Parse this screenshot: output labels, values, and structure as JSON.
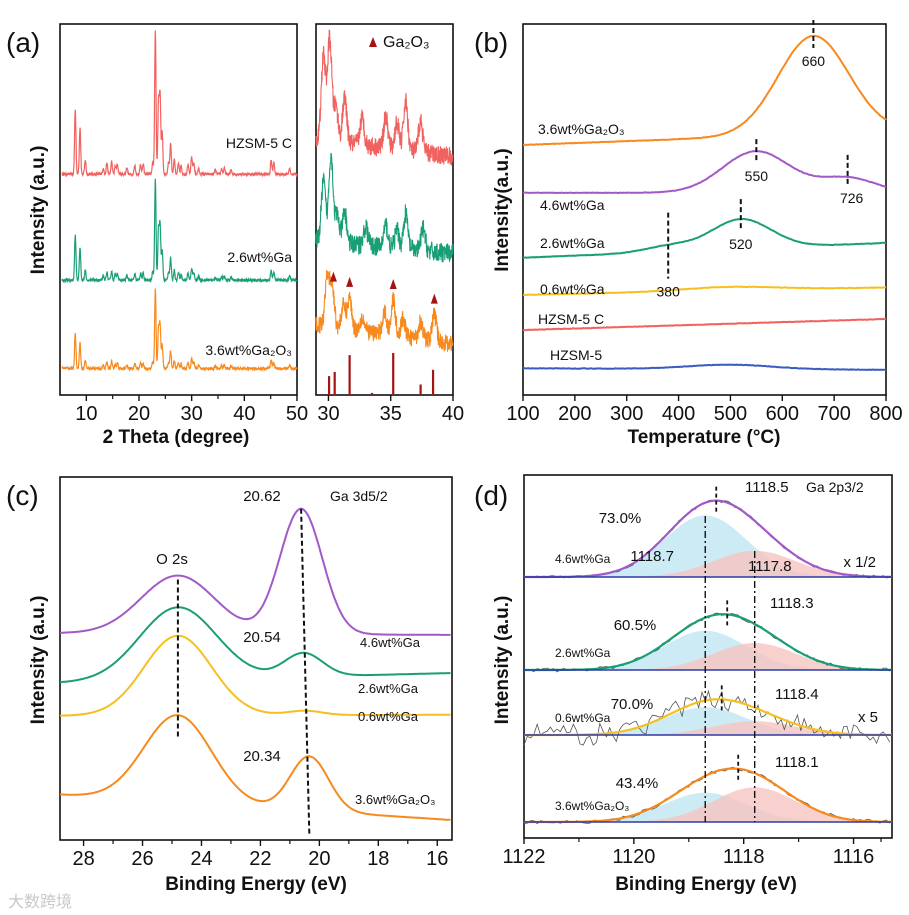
{
  "watermark": "大数跨境",
  "chart_data": [
    {
      "id": "panel_a",
      "type": "line",
      "panel_label": "(a)",
      "xlabel": "2 Theta (degree)",
      "ylabel": "Intensity (a.u.)",
      "xlim": [
        5,
        50
      ],
      "xticks": [
        10,
        20,
        30,
        40,
        50
      ],
      "ylim": [
        0,
        4.2
      ],
      "zsm5_reflections": [
        [
          7.9,
          0.45
        ],
        [
          8.8,
          0.33
        ],
        [
          9.8,
          0.1
        ],
        [
          13.2,
          0.04
        ],
        [
          13.9,
          0.08
        ],
        [
          14.8,
          0.09
        ],
        [
          15.5,
          0.06
        ],
        [
          15.9,
          0.07
        ],
        [
          17.7,
          0.05
        ],
        [
          19.2,
          0.06
        ],
        [
          20.3,
          0.07
        ],
        [
          20.8,
          0.07
        ],
        [
          22.6,
          0.08
        ],
        [
          23.1,
          1.0
        ],
        [
          23.7,
          0.5
        ],
        [
          24.0,
          0.55
        ],
        [
          24.4,
          0.3
        ],
        [
          25.6,
          0.08
        ],
        [
          26.0,
          0.22
        ],
        [
          26.7,
          0.1
        ],
        [
          27.5,
          0.08
        ],
        [
          28.0,
          0.06
        ],
        [
          29.3,
          0.07
        ],
        [
          30.0,
          0.12
        ],
        [
          30.4,
          0.08
        ],
        [
          31.3,
          0.04
        ],
        [
          34.5,
          0.03
        ],
        [
          35.7,
          0.04
        ],
        [
          36.2,
          0.04
        ],
        [
          37.5,
          0.03
        ],
        [
          45.1,
          0.1
        ],
        [
          45.6,
          0.08
        ],
        [
          48.6,
          0.04
        ]
      ],
      "series": [
        {
          "name": "HZSM-5 C",
          "color": "#f0625f",
          "offset": 2.5,
          "scale": 1.63,
          "noise": 0.03
        },
        {
          "name": "2.6wt%Ga",
          "color": "#1a9e77",
          "offset": 1.3,
          "scale": 1.15,
          "noise": 0.03
        },
        {
          "name": "3.6wt%Ga₂O₃",
          "color": "#f7891e",
          "offset": 0.3,
          "scale": 0.9,
          "noise": 0.03
        }
      ],
      "inset": {
        "xlim": [
          29,
          40
        ],
        "xticks": [
          30,
          35,
          40
        ],
        "legend": "Ga₂O₃",
        "series": [
          {
            "name": "HZSM-5 C",
            "color": "#f0625f",
            "level": [
              2.9,
              2.7
            ],
            "noise": 0.22,
            "peaks": [
              [
                29.6,
                0.95
              ],
              [
                30.1,
                1.15
              ],
              [
                30.6,
                0.4
              ],
              [
                31.3,
                0.5
              ],
              [
                32.7,
                0.3
              ],
              [
                34.6,
                0.35
              ],
              [
                35.5,
                0.3
              ],
              [
                36.2,
                0.55
              ],
              [
                37.4,
                0.35
              ]
            ]
          },
          {
            "name": "2.6wt%Ga",
            "color": "#1a9e77",
            "level": [
              1.75,
              1.6
            ],
            "noise": 0.22,
            "peaks": [
              [
                29.6,
                0.68
              ],
              [
                30.2,
                1.0
              ],
              [
                30.7,
                0.3
              ],
              [
                31.3,
                0.35
              ],
              [
                33.0,
                0.2
              ],
              [
                34.6,
                0.25
              ],
              [
                35.5,
                0.2
              ],
              [
                36.2,
                0.4
              ],
              [
                37.6,
                0.25
              ]
            ]
          },
          {
            "name": "3.6wt%Ga₂O₃",
            "color": "#f7891e",
            "level": [
              0.8,
              0.58
            ],
            "noise": 0.2,
            "peaks": [
              [
                29.9,
                0.6
              ],
              [
                30.3,
                0.45
              ],
              [
                31.2,
                0.25
              ],
              [
                31.7,
                0.35
              ],
              [
                32.7,
                0.15
              ],
              [
                34.5,
                0.25
              ],
              [
                35.2,
                0.4
              ],
              [
                36.0,
                0.2
              ],
              [
                37.4,
                0.2
              ],
              [
                38.5,
                0.3
              ]
            ]
          }
        ],
        "ga2o3_reference": [
          [
            30.05,
            0.45
          ],
          [
            30.5,
            0.55
          ],
          [
            31.7,
            0.95
          ],
          [
            33.5,
            0.05
          ],
          [
            35.2,
            1.0
          ],
          [
            37.4,
            0.25
          ],
          [
            38.4,
            0.6
          ]
        ],
        "ga2o3_markers": [
          30.4,
          31.7,
          35.2,
          38.5
        ],
        "marker_color": "#a31515"
      }
    },
    {
      "id": "panel_b",
      "type": "line",
      "panel_label": "(b)",
      "xlabel": "Temperature (°C)",
      "ylabel": "Intensity(a.u.)",
      "xlim": [
        100,
        800
      ],
      "xticks": [
        100,
        200,
        300,
        400,
        500,
        600,
        700,
        800
      ],
      "ylim": [
        0,
        10
      ],
      "series": [
        {
          "name": "3.6wt%Ga₂O₃",
          "color": "#f7891e",
          "baseline": [
            6.74,
            7.1
          ],
          "peaks": [
            [
              660,
              2.65,
              68
            ]
          ]
        },
        {
          "name": "4.6wt%Ga",
          "color": "#a259c8",
          "baseline": [
            5.45,
            5.45
          ],
          "peaks": [
            [
              550,
              1.12,
              65
            ],
            [
              726,
              0.4,
              55
            ]
          ]
        },
        {
          "name": "2.6wt%Ga",
          "color": "#1a9e77",
          "baseline": [
            3.7,
            4.1
          ],
          "peaks": [
            [
              520,
              0.8,
              58
            ],
            [
              380,
              0.15,
              45
            ]
          ]
        },
        {
          "name": "0.6wt%Ga",
          "color": "#f5c01e",
          "baseline": [
            2.7,
            2.9
          ],
          "peaks": [
            [
              500,
              0.1,
              90
            ]
          ]
        },
        {
          "name": "HZSM-5 C",
          "color": "#f0625f",
          "baseline": [
            1.75,
            2.05
          ],
          "peaks": []
        },
        {
          "name": "HZSM-5",
          "color": "#3a5bbf",
          "baseline": [
            0.72,
            0.68
          ],
          "peaks": [
            [
              500,
              0.12,
              80
            ]
          ]
        }
      ],
      "annotations": [
        {
          "text": "660",
          "x": 660
        },
        {
          "text": "550",
          "x": 550
        },
        {
          "text": "726",
          "x": 726
        },
        {
          "text": "520",
          "x": 520
        },
        {
          "text": "380",
          "x": 380
        }
      ]
    },
    {
      "id": "panel_c",
      "type": "line",
      "panel_label": "(c)",
      "title": "Ga 3d5/2",
      "xlabel": "Binding Energy (eV)",
      "ylabel": "Intensity (a.u.)",
      "xlim": [
        28.8,
        15.5
      ],
      "xticks": [
        28,
        26,
        24,
        22,
        20,
        18,
        16
      ],
      "ylim": [
        0,
        10
      ],
      "series": [
        {
          "name": "4.6wt%Ga",
          "color": "#a259c8",
          "baseline": [
            5.7,
            5.65
          ],
          "peaks": [
            [
              24.8,
              1.6,
              1.25
            ],
            [
              20.62,
              3.45,
              0.72
            ]
          ]
        },
        {
          "name": "2.6wt%Ga",
          "color": "#1a9e77",
          "baseline": [
            4.33,
            4.6
          ],
          "peaks": [
            [
              24.8,
              2.0,
              1.3
            ],
            [
              20.54,
              0.65,
              0.65
            ]
          ]
        },
        {
          "name": "0.6wt%Ga",
          "color": "#f5c01e",
          "baseline": [
            3.42,
            3.45
          ],
          "peaks": [
            [
              24.8,
              2.2,
              1.15
            ],
            [
              20.5,
              0.12,
              0.6
            ]
          ]
        },
        {
          "name": "3.6wt%Ga₂O₃",
          "color": "#f7891e",
          "baseline": [
            1.25,
            0.55
          ],
          "peaks": [
            [
              24.8,
              2.4,
              1.15
            ],
            [
              20.34,
              1.5,
              0.65
            ]
          ]
        }
      ],
      "annotations": [
        {
          "text": "O 2s",
          "x": 24.8
        },
        {
          "text": "20.62",
          "x": 20.62
        },
        {
          "text": "20.54",
          "x": 20.54
        },
        {
          "text": "20.34",
          "x": 20.34
        }
      ]
    },
    {
      "id": "panel_d",
      "type": "line",
      "panel_label": "(d)",
      "title": "Ga 2p3/2",
      "xlabel": "Binding Energy (eV)",
      "ylabel": "Intensity (a.u.)",
      "xlim": [
        1122,
        1115.3
      ],
      "xticks": [
        1122,
        1120,
        1118,
        1116
      ],
      "component_colors": {
        "higher_BE": "#bfe6f3",
        "lower_BE": "#f6c4c0",
        "raw": "#555555",
        "baseline": "#2b3ba8"
      },
      "component_centers": {
        "higher_BE": "1118.7",
        "lower_BE": "1117.8"
      },
      "subpanels": [
        {
          "name": "4.6wt%Ga",
          "color": "#a259c8",
          "percent": "73.0%",
          "peak_label": "1118.5",
          "peak": 1118.5,
          "multiplier": "x 1/2",
          "components": [
            [
              1118.7,
              0.8,
              0.75
            ],
            [
              1117.8,
              0.34,
              0.75
            ]
          ],
          "noise": 0.02
        },
        {
          "name": "2.6wt%Ga",
          "color": "#1a9e77",
          "percent": "60.5%",
          "peak_label": "1118.3",
          "peak": 1118.3,
          "multiplier": "",
          "components": [
            [
              1118.7,
              0.51,
              0.75
            ],
            [
              1117.8,
              0.35,
              0.75
            ]
          ],
          "noise": 0.025
        },
        {
          "name": "0.6wt%Ga",
          "color": "#f5c01e",
          "percent": "70.0%",
          "peak_label": "1118.4",
          "peak": 1118.4,
          "multiplier": "x 5",
          "components": [
            [
              1118.7,
              0.36,
              0.75
            ],
            [
              1117.8,
              0.18,
              0.75
            ]
          ],
          "noise": 0.14
        },
        {
          "name": "3.6wt%Ga₂O₃",
          "color": "#f7891e",
          "percent": "43.4%",
          "peak_label": "1118.1",
          "peak": 1118.1,
          "multiplier": "",
          "components": [
            [
              1118.7,
              0.38,
              0.75
            ],
            [
              1117.8,
              0.45,
              0.75
            ]
          ],
          "noise": 0.025
        }
      ]
    }
  ]
}
